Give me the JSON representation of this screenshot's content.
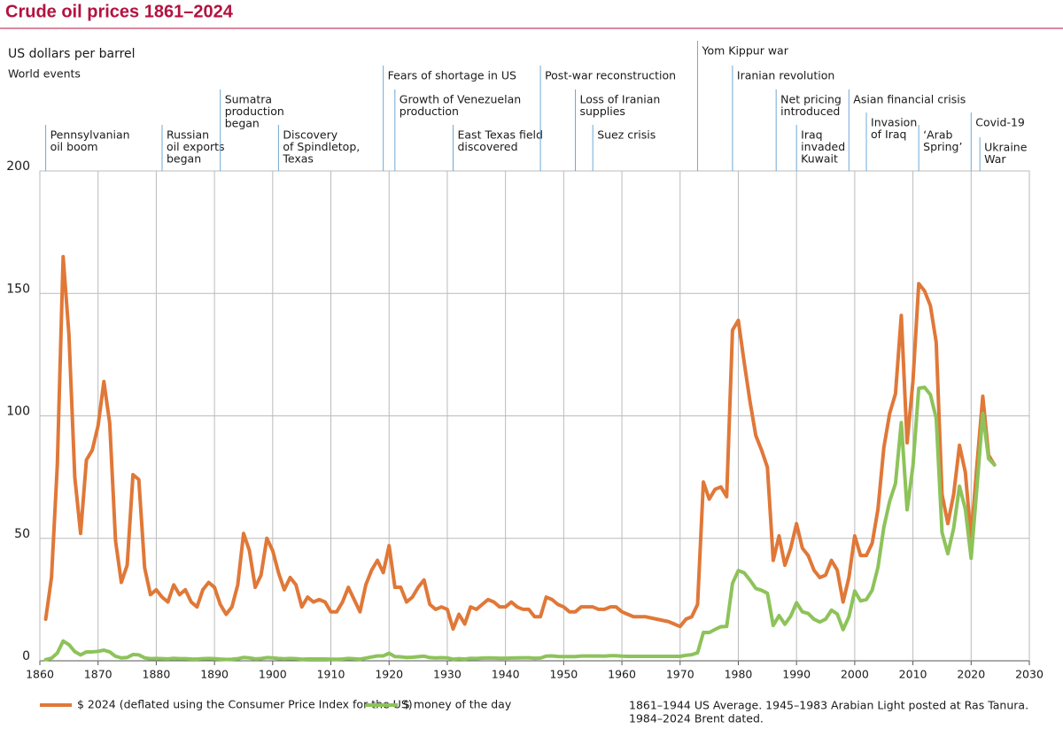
{
  "chart_data": {
    "type": "line",
    "title": "Crude oil prices 1861–2024",
    "y_label": "US dollars per barrel",
    "events_label": "World events",
    "x": [
      1861,
      1862,
      1863,
      1864,
      1865,
      1866,
      1867,
      1868,
      1869,
      1870,
      1871,
      1872,
      1873,
      1874,
      1875,
      1876,
      1877,
      1878,
      1879,
      1880,
      1881,
      1882,
      1883,
      1884,
      1885,
      1886,
      1887,
      1888,
      1889,
      1890,
      1891,
      1892,
      1893,
      1894,
      1895,
      1896,
      1897,
      1898,
      1899,
      1900,
      1901,
      1902,
      1903,
      1904,
      1905,
      1906,
      1907,
      1908,
      1909,
      1910,
      1911,
      1912,
      1913,
      1914,
      1915,
      1916,
      1917,
      1918,
      1919,
      1920,
      1921,
      1922,
      1923,
      1924,
      1925,
      1926,
      1927,
      1928,
      1929,
      1930,
      1931,
      1932,
      1933,
      1934,
      1935,
      1936,
      1937,
      1938,
      1939,
      1940,
      1941,
      1942,
      1943,
      1944,
      1945,
      1946,
      1947,
      1948,
      1949,
      1950,
      1951,
      1952,
      1953,
      1954,
      1955,
      1956,
      1957,
      1958,
      1959,
      1960,
      1961,
      1962,
      1963,
      1964,
      1965,
      1966,
      1967,
      1968,
      1969,
      1970,
      1971,
      1972,
      1973,
      1974,
      1975,
      1976,
      1977,
      1978,
      1979,
      1980,
      1981,
      1982,
      1983,
      1984,
      1985,
      1986,
      1987,
      1988,
      1989,
      1990,
      1991,
      1992,
      1993,
      1994,
      1995,
      1996,
      1997,
      1998,
      1999,
      2000,
      2001,
      2002,
      2003,
      2004,
      2005,
      2006,
      2007,
      2008,
      2009,
      2010,
      2011,
      2012,
      2013,
      2014,
      2015,
      2016,
      2017,
      2018,
      2019,
      2020,
      2021,
      2022,
      2023,
      2024
    ],
    "series": [
      {
        "name": "$ 2024 (deflated using the Consumer Price Index for the US)",
        "color": "#e07838",
        "values": [
          17,
          34,
          80,
          165,
          133,
          75,
          52,
          82,
          86,
          96,
          114,
          97,
          49,
          32,
          39,
          76,
          74,
          38,
          27,
          29,
          26,
          24,
          31,
          27,
          29,
          24,
          22,
          29,
          32,
          30,
          23,
          19,
          22,
          31,
          52,
          45,
          30,
          35,
          50,
          45,
          36,
          29,
          34,
          31,
          22,
          26,
          24,
          25,
          24,
          20,
          20,
          24,
          30,
          25,
          20,
          31,
          37,
          41,
          36,
          47,
          30,
          30,
          24,
          26,
          30,
          33,
          23,
          21,
          22,
          21,
          13,
          19,
          15,
          22,
          21,
          23,
          25,
          24,
          22,
          22,
          24,
          22,
          21,
          21,
          18,
          18,
          26,
          25,
          23,
          22,
          20,
          20,
          22,
          22,
          22,
          21,
          21,
          22,
          22,
          20,
          19,
          18,
          18,
          18,
          17.5,
          17,
          16.5,
          16,
          15,
          14,
          17,
          18,
          23,
          73,
          66,
          70,
          71,
          67,
          135,
          139,
          122,
          106,
          92,
          86,
          79,
          41,
          51,
          39,
          46,
          56,
          46,
          43,
          37,
          34,
          35,
          41,
          37,
          24,
          34,
          51,
          43,
          43,
          48,
          62,
          87,
          101,
          109,
          141,
          89,
          114,
          154,
          151,
          145,
          130,
          68,
          56,
          68,
          88,
          77,
          50,
          80,
          108,
          84,
          80
        ]
      },
      {
        "name": "$ money of the day",
        "color": "#8dc35a",
        "values": [
          0.49,
          1.05,
          3.15,
          8.06,
          6.59,
          3.74,
          2.41,
          3.63,
          3.64,
          3.86,
          4.34,
          3.64,
          1.83,
          1.17,
          1.35,
          2.56,
          2.42,
          1.19,
          0.86,
          0.95,
          0.86,
          0.78,
          1.0,
          0.84,
          0.88,
          0.71,
          0.67,
          0.88,
          0.94,
          0.87,
          0.67,
          0.56,
          0.64,
          0.84,
          1.36,
          1.18,
          0.79,
          0.91,
          1.29,
          1.19,
          0.96,
          0.8,
          0.94,
          0.86,
          0.62,
          0.73,
          0.72,
          0.72,
          0.7,
          0.61,
          0.61,
          0.74,
          0.95,
          0.81,
          0.64,
          1.1,
          1.56,
          1.98,
          2.01,
          3.07,
          1.73,
          1.61,
          1.34,
          1.43,
          1.68,
          1.88,
          1.3,
          1.17,
          1.27,
          1.19,
          0.65,
          0.87,
          0.67,
          1.0,
          0.97,
          1.09,
          1.18,
          1.13,
          1.02,
          1.02,
          1.14,
          1.19,
          1.2,
          1.21,
          1.05,
          1.12,
          1.9,
          1.99,
          1.78,
          1.71,
          1.71,
          1.71,
          1.93,
          1.93,
          1.93,
          1.93,
          1.9,
          2.08,
          2.08,
          1.9,
          1.8,
          1.8,
          1.8,
          1.8,
          1.8,
          1.8,
          1.8,
          1.8,
          1.8,
          1.8,
          2.24,
          2.48,
          3.29,
          11.58,
          11.53,
          12.8,
          13.92,
          14.02,
          31.61,
          36.83,
          35.93,
          32.97,
          29.55,
          28.78,
          27.56,
          14.43,
          18.44,
          14.92,
          18.23,
          23.73,
          20.0,
          19.32,
          16.97,
          15.82,
          17.02,
          20.67,
          19.09,
          12.72,
          17.97,
          28.5,
          24.44,
          25.02,
          28.83,
          38.27,
          54.52,
          65.14,
          72.39,
          97.26,
          61.67,
          79.5,
          111.26,
          111.67,
          108.66,
          98.95,
          52.39,
          43.73,
          54.19,
          71.31,
          62,
          41.84,
          70.91,
          100.93,
          82.49,
          80
        ]
      }
    ],
    "xlim": [
      1860,
      2030
    ],
    "xticks": [
      1860,
      1870,
      1880,
      1890,
      1900,
      1910,
      1920,
      1930,
      1940,
      1950,
      1960,
      1970,
      1980,
      1990,
      2000,
      2010,
      2020,
      2030
    ],
    "ylim": [
      0,
      200
    ],
    "yticks": [
      0,
      50,
      100,
      150,
      200
    ],
    "grid": true,
    "legend": "bottom",
    "annotations": [
      {
        "lines": [
          "Pennsylvanian",
          "oil boom"
        ],
        "x": 1861
      },
      {
        "lines": [
          "Russian",
          "oil exports",
          "began"
        ],
        "x": 1881
      },
      {
        "lines": [
          "Sumatra",
          "production",
          "began"
        ],
        "x": 1891
      },
      {
        "lines": [
          "Discovery",
          "of Spindletop,",
          "Texas"
        ],
        "x": 1901
      },
      {
        "lines": [
          "Fears of shortage in US"
        ],
        "x": 1919
      },
      {
        "lines": [
          "Growth of Venezuelan",
          "production"
        ],
        "x": 1921
      },
      {
        "lines": [
          "East Texas field",
          "discovered"
        ],
        "x": 1931
      },
      {
        "lines": [
          "Post-war reconstruction"
        ],
        "x": 1946
      },
      {
        "lines": [
          "Loss of Iranian",
          "supplies"
        ],
        "x": 1952
      },
      {
        "lines": [
          "Suez crisis"
        ],
        "x": 1955
      },
      {
        "lines": [
          "Yom Kippur war"
        ],
        "x": 1973
      },
      {
        "lines": [
          "Iranian revolution"
        ],
        "x": 1979
      },
      {
        "lines": [
          "Net pricing",
          "introduced"
        ],
        "x": 1986.5
      },
      {
        "lines": [
          "Iraq",
          "invaded",
          "Kuwait"
        ],
        "x": 1990
      },
      {
        "lines": [
          "Asian financial crisis"
        ],
        "x": 1999
      },
      {
        "lines": [
          "Invasion",
          "of Iraq"
        ],
        "x": 2002
      },
      {
        "lines": [
          "‘Arab",
          "Spring’"
        ],
        "x": 2011
      },
      {
        "lines": [
          "Covid-19"
        ],
        "x": 2020
      },
      {
        "lines": [
          "Ukraine",
          "War"
        ],
        "x": 2021.5
      }
    ],
    "footnote": [
      "1861–1944 US Average. 1945–1983 Arabian Light posted at Ras Tanura.",
      "1984–2024 Brent dated."
    ]
  }
}
